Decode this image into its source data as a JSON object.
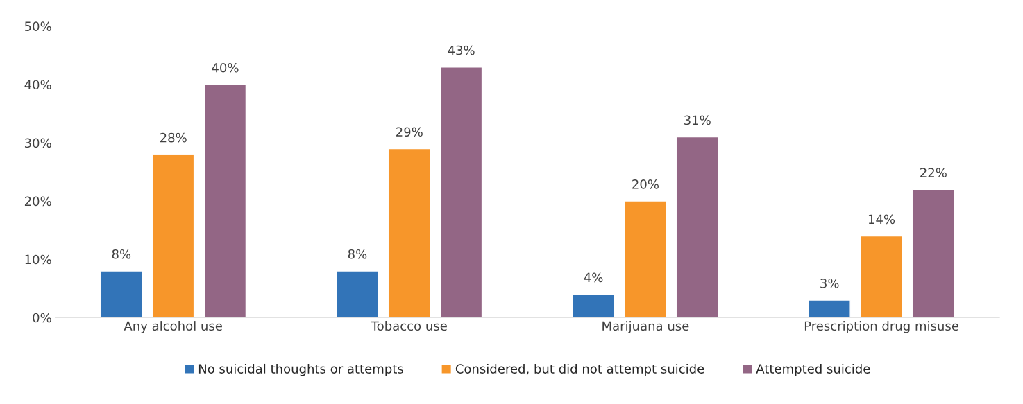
{
  "chart_data": {
    "type": "bar",
    "categories": [
      "Any alcohol use",
      "Tobacco use",
      "Marijuana use",
      "Prescription drug misuse"
    ],
    "series": [
      {
        "name": "No suicidal thoughts or attempts",
        "color": "#3274b8",
        "values": [
          8,
          8,
          4,
          3
        ],
        "value_labels": [
          "8%",
          "8%",
          "4%",
          "3%"
        ]
      },
      {
        "name": "Considered, but did not attempt suicide",
        "color": "#f7962a",
        "values": [
          28,
          29,
          20,
          14
        ],
        "value_labels": [
          "28%",
          "29%",
          "20%",
          "14%"
        ]
      },
      {
        "name": "Attempted suicide",
        "color": "#936685",
        "values": [
          40,
          43,
          31,
          22
        ],
        "value_labels": [
          "40%",
          "43%",
          "31%",
          "22%"
        ]
      }
    ],
    "ylim": [
      0,
      50
    ],
    "yticks": [
      {
        "value": 0,
        "label": "0%"
      },
      {
        "value": 10,
        "label": "10%"
      },
      {
        "value": 20,
        "label": "20%"
      },
      {
        "value": 30,
        "label": "30%"
      },
      {
        "value": 40,
        "label": "40%"
      },
      {
        "value": 50,
        "label": "50%"
      }
    ],
    "grid": false,
    "legend": "bottom"
  }
}
